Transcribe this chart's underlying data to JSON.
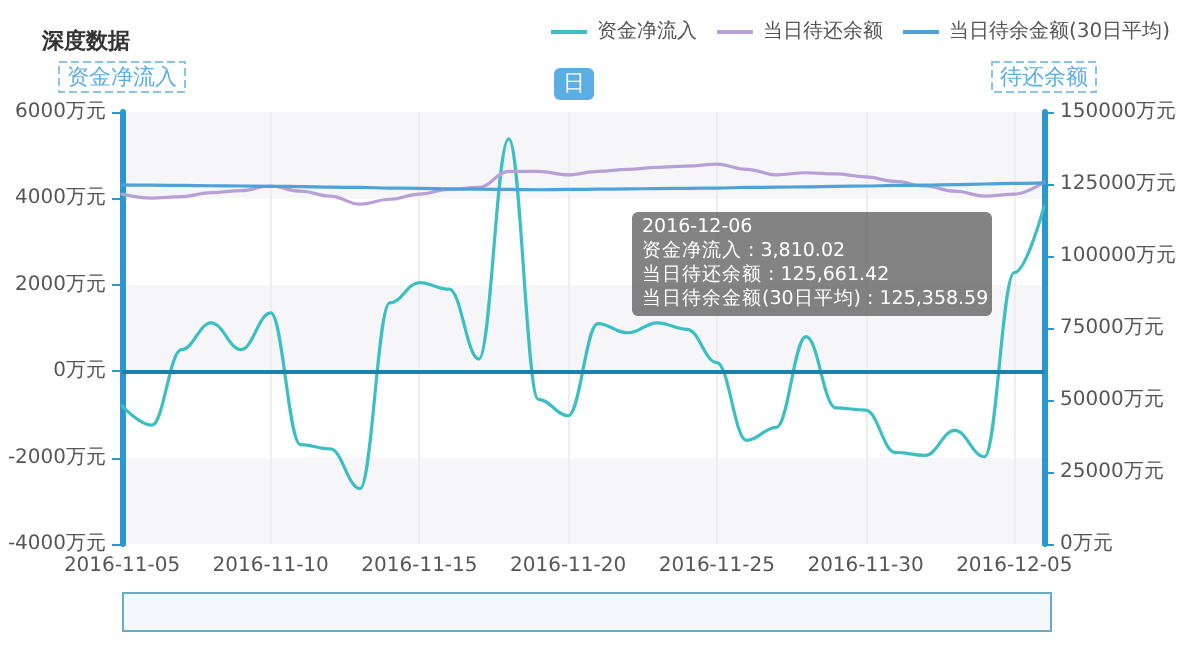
{
  "chart_data": {
    "type": "line",
    "title": "深度数据",
    "ylabel": "资金净流入",
    "y2label": "待还余额",
    "annotations": [
      "日",
      "2016-12-06",
      "资金净流入 : 3,810.02",
      "当日待还余额 : 125,661.42",
      "当日待余金额(30日平均) : 125,358.59"
    ],
    "categories": [
      "2016-11-05",
      null,
      null,
      null,
      null,
      "2016-11-10",
      null,
      null,
      null,
      null,
      "2016-11-15",
      null,
      null,
      null,
      null,
      "2016-11-20",
      null,
      null,
      null,
      null,
      "2016-11-25",
      null,
      null,
      null,
      null,
      "2016-11-30",
      null,
      null,
      null,
      null,
      "2016-12-05",
      null
    ],
    "series": [
      {
        "name": "资金净流入",
        "color": "#3bbfc2",
        "values": [
          -800,
          -1250,
          500,
          1120,
          500,
          1350,
          -1700,
          -1800,
          -2720,
          1580,
          2050,
          1900,
          280,
          5380,
          -650,
          -1030,
          1100,
          890,
          1120,
          970,
          200,
          -1600,
          -1300,
          800,
          -850,
          -900,
          -1880,
          -1950,
          -1370,
          -1980,
          2280,
          3810.02
        ]
      },
      {
        "name": "当日待还余额",
        "color": "#b89fd8",
        "axis": "y2",
        "values": [
          121500,
          120100,
          120600,
          122000,
          122700,
          124300,
          122500,
          120800,
          118000,
          119700,
          121500,
          123100,
          123800,
          129400,
          129400,
          128200,
          129400,
          130100,
          130800,
          131200,
          131900,
          130100,
          128200,
          128900,
          128500,
          127500,
          125900,
          124300,
          122500,
          120800,
          121500,
          125661.42
        ]
      },
      {
        "name": "当日待余金额(30日平均)",
        "color": "#4ea2d8",
        "axis": "y2",
        "values": [
          124700,
          124600,
          124500,
          124400,
          124300,
          124200,
          124100,
          123900,
          123800,
          123600,
          123500,
          123300,
          123200,
          123100,
          123000,
          123100,
          123200,
          123300,
          123400,
          123500,
          123600,
          123800,
          123900,
          124000,
          124200,
          124300,
          124500,
          124600,
          124800,
          125000,
          125200,
          125358.59
        ]
      }
    ],
    "ylim": [
      -4000,
      6000
    ],
    "yticks": [
      {
        "value": -4000,
        "label": "-4000万元"
      },
      {
        "value": -2000,
        "label": "-2000万元"
      },
      {
        "value": 0,
        "label": "0万元"
      },
      {
        "value": 2000,
        "label": "2000万元"
      },
      {
        "value": 4000,
        "label": "4000万元"
      },
      {
        "value": 6000,
        "label": "6000万元"
      }
    ],
    "y2lim": [
      0,
      150000
    ],
    "y2ticks": [
      {
        "value": 0,
        "label": "0万元"
      },
      {
        "value": 25000,
        "label": "25000万元"
      },
      {
        "value": 50000,
        "label": "50000万元"
      },
      {
        "value": 75000,
        "label": "75000万元"
      },
      {
        "value": 100000,
        "label": "100000万元"
      },
      {
        "value": 125000,
        "label": "125000万元"
      },
      {
        "value": 150000,
        "label": "150000万元"
      }
    ],
    "ref_lines": [
      {
        "axis": "y",
        "value": 0,
        "color": "#1b7fb0"
      }
    ],
    "grid": true,
    "legend": "top right",
    "marker": "none",
    "line_style": "solid"
  }
}
